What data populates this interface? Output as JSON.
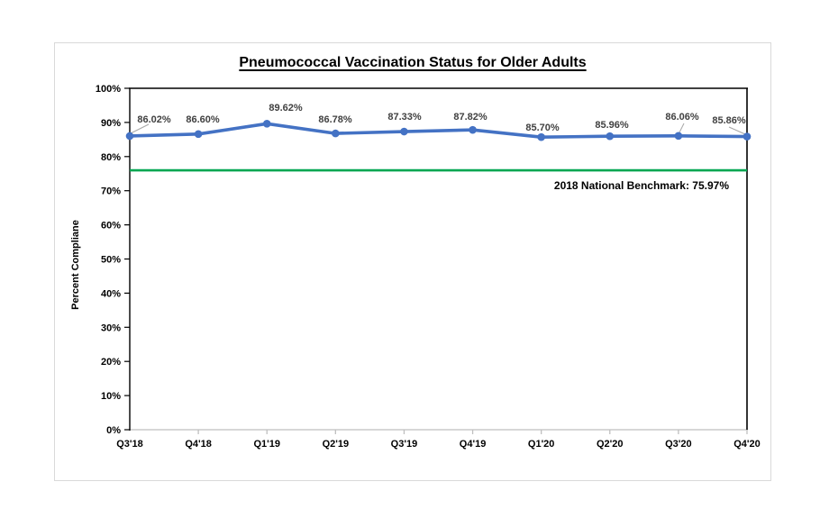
{
  "chart_data": {
    "type": "line",
    "title": "Pneumococcal Vaccination Status for Older Adults",
    "xlabel": "",
    "ylabel": "Percent Compliane",
    "categories": [
      "Q3'18",
      "Q4'18",
      "Q1'19",
      "Q2'19",
      "Q3'19",
      "Q4'19",
      "Q1'20",
      "Q2'20",
      "Q3'20",
      "Q4'20"
    ],
    "values": [
      86.02,
      86.6,
      89.62,
      86.78,
      87.33,
      87.82,
      85.7,
      85.96,
      86.06,
      85.86
    ],
    "data_labels": [
      "86.02%",
      "86.60%",
      "89.62%",
      "86.78%",
      "87.33%",
      "87.82%",
      "85.70%",
      "85.96%",
      "86.06%",
      "85.86%"
    ],
    "ylim": [
      0,
      100
    ],
    "ytick_step": 10,
    "ytick_labels": [
      "0%",
      "10%",
      "20%",
      "30%",
      "40%",
      "50%",
      "60%",
      "70%",
      "80%",
      "90%",
      "100%"
    ],
    "grid": false,
    "legend": "none",
    "benchmark": {
      "value": 75.97,
      "label": "2018 National Benchmark: 75.97%"
    },
    "colors": {
      "line": "#4472C4",
      "marker": "#4472C4",
      "benchmark": "#00A651",
      "data_label": "#404040",
      "axis": "#000000",
      "minor_axis": "#BFBFBF",
      "frame_border": "#D9D9D9",
      "leader": "#A6A6A6"
    }
  }
}
